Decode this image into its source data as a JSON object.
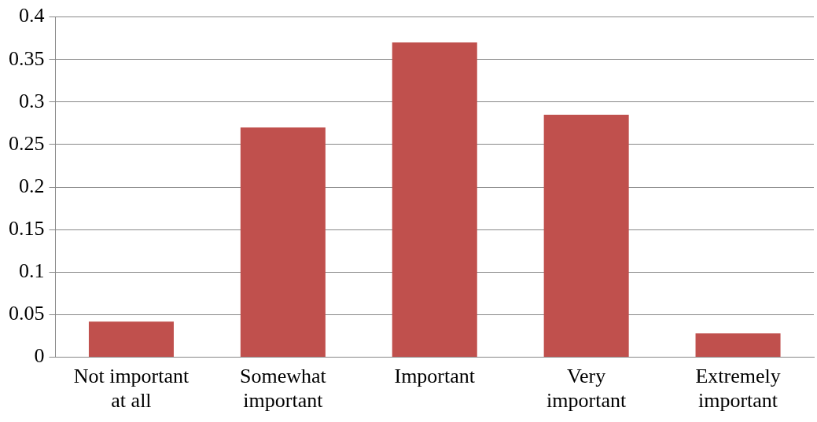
{
  "chart_data": {
    "type": "bar",
    "categories": [
      "Not important at all",
      "Somewhat important",
      "Important",
      "Very important",
      "Extremely important"
    ],
    "values": [
      0.042,
      0.27,
      0.37,
      0.285,
      0.028
    ],
    "color": "#c0504d",
    "ylim": [
      0,
      0.4
    ],
    "yticks": [
      0,
      0.05,
      0.1,
      0.15,
      0.2,
      0.25,
      0.3,
      0.35,
      0.4
    ],
    "grid": "y",
    "legend": false
  }
}
